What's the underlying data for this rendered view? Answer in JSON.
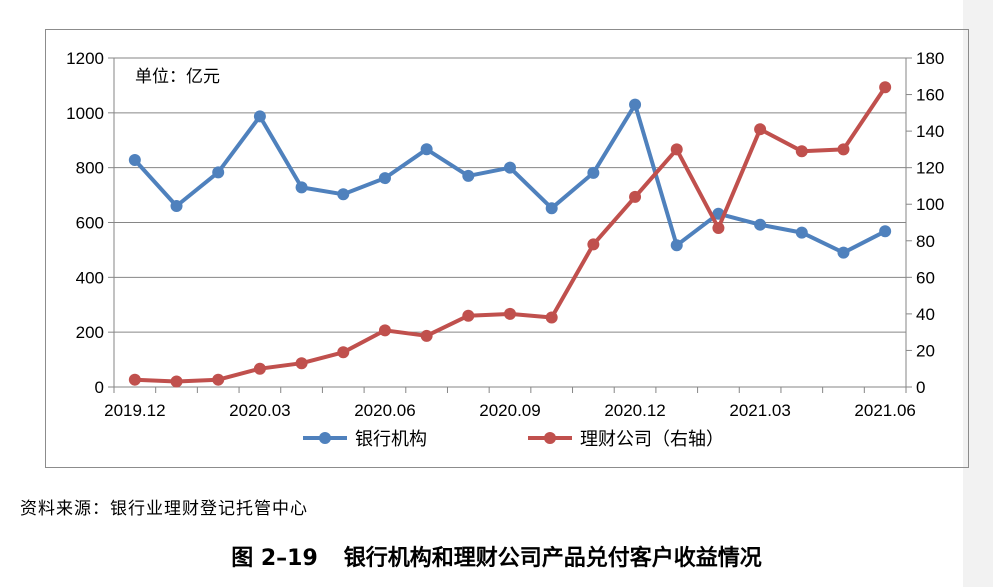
{
  "source_note": "资料来源：银行业理财登记托管中心",
  "caption": {
    "number": "图 2–19",
    "title": "银行机构和理财公司产品兑付客户收益情况"
  },
  "chart_data": {
    "type": "line",
    "unit_note": "单位：亿元",
    "x": [
      "2019.12",
      "2020.01",
      "2020.02",
      "2020.03",
      "2020.04",
      "2020.05",
      "2020.06",
      "2020.07",
      "2020.08",
      "2020.09",
      "2020.10",
      "2020.11",
      "2020.12",
      "2021.01",
      "2021.02",
      "2021.03",
      "2021.04",
      "2021.05",
      "2021.06"
    ],
    "x_tick_labels": [
      "2019.12",
      "2020.03",
      "2020.06",
      "2020.09",
      "2020.12",
      "2021.03",
      "2021.06"
    ],
    "ylim": [
      0,
      1200
    ],
    "y_ticks": [
      "0",
      "200",
      "400",
      "600",
      "800",
      "1000",
      "1200"
    ],
    "y2lim": [
      0,
      180
    ],
    "y2_ticks": [
      "0",
      "20",
      "40",
      "60",
      "80",
      "100",
      "120",
      "140",
      "160",
      "180"
    ],
    "grid": true,
    "legend_position": "bottom",
    "series": [
      {
        "name": "银行机构",
        "axis": "left",
        "color": "#4f81bd",
        "values": [
          828,
          660,
          783,
          987,
          728,
          703,
          762,
          867,
          770,
          800,
          652,
          781,
          1030,
          517,
          632,
          592,
          563,
          490,
          568
        ]
      },
      {
        "name": "理财公司（右轴）",
        "axis": "right",
        "color": "#c0504d",
        "values": [
          4,
          3,
          4,
          10,
          13,
          19,
          31,
          28,
          39,
          40,
          38,
          78,
          104,
          130,
          87,
          141,
          129,
          130,
          164
        ]
      }
    ]
  }
}
